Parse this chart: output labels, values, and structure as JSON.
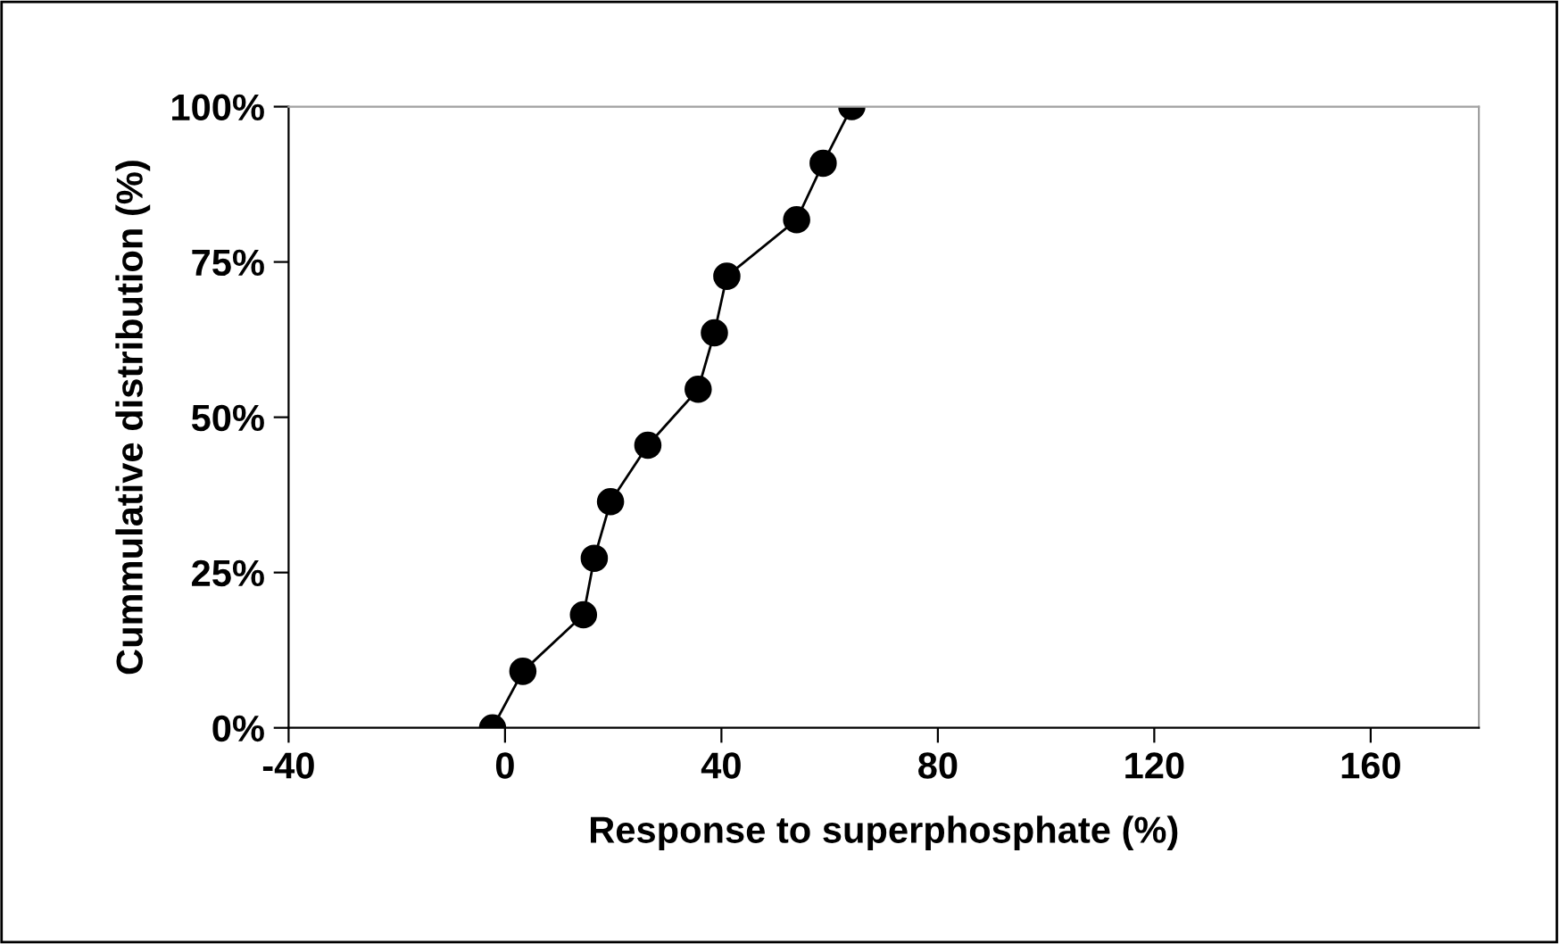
{
  "chart_data": {
    "type": "line",
    "xlabel": "Response to superphosphate (%)",
    "ylabel": "Cummulative distribution (%)",
    "x": [
      -2.3,
      3.3,
      14.5,
      16.5,
      19.5,
      26.4,
      35.7,
      38.7,
      41,
      53.9,
      58.8,
      64.1
    ],
    "series": [
      {
        "color": "#000000",
        "values": [
          0,
          9.1,
          18.2,
          27.3,
          36.4,
          45.5,
          54.5,
          63.6,
          72.7,
          81.8,
          90.9,
          100
        ]
      }
    ],
    "marker": "circle",
    "line_style": "solid",
    "grid": false,
    "legend": false,
    "xlim": [
      -40,
      180
    ],
    "xticks": [
      -40,
      0,
      40,
      80,
      120,
      160
    ],
    "ylim": [
      0,
      100
    ],
    "yticks": [
      {
        "value": 0,
        "label": "0%"
      },
      {
        "value": 25,
        "label": "25%"
      },
      {
        "value": 50,
        "label": "50%"
      },
      {
        "value": 75,
        "label": "75%"
      },
      {
        "value": 100,
        "label": "100%"
      }
    ]
  }
}
